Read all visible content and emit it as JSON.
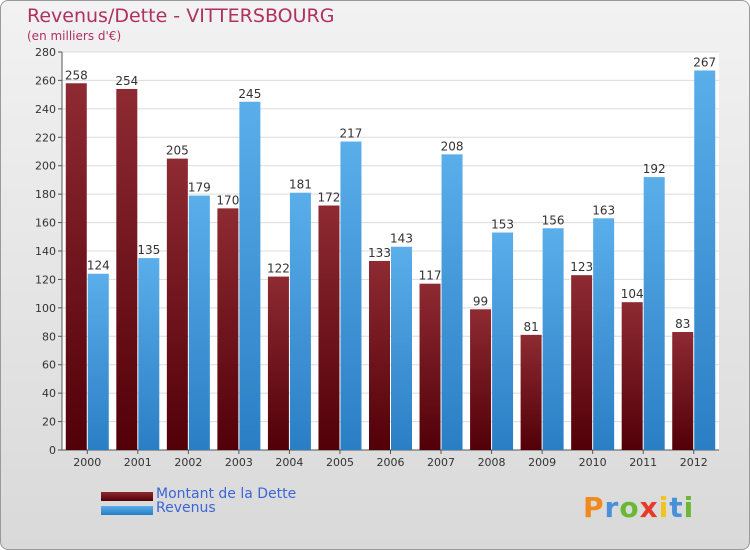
{
  "colors": {
    "dette": "#7a1c24",
    "revenus": "#4a9ee0",
    "title": "#b03060",
    "legend_text": "#3b66d6"
  },
  "logo_text": "Proxiti",
  "chart_data": {
    "type": "bar",
    "title": "Revenus/Dette - VITTERSBOURG",
    "subtitle": "(en milliers d'€)",
    "xlabel": "",
    "ylabel": "",
    "ylim": [
      0,
      280
    ],
    "yticks": [
      0,
      20,
      40,
      60,
      80,
      100,
      120,
      140,
      160,
      180,
      200,
      220,
      240,
      260,
      280
    ],
    "grid": true,
    "legend_position": "bottom-left",
    "categories": [
      "2000",
      "2001",
      "2002",
      "2003",
      "2004",
      "2005",
      "2006",
      "2007",
      "2008",
      "2009",
      "2010",
      "2011",
      "2012"
    ],
    "series": [
      {
        "name": "Montant de la Dette",
        "values": [
          258,
          254,
          205,
          170,
          122,
          172,
          133,
          117,
          99,
          81,
          123,
          104,
          83
        ]
      },
      {
        "name": "Revenus",
        "values": [
          124,
          135,
          179,
          245,
          181,
          217,
          143,
          208,
          153,
          156,
          163,
          192,
          267
        ]
      }
    ]
  }
}
